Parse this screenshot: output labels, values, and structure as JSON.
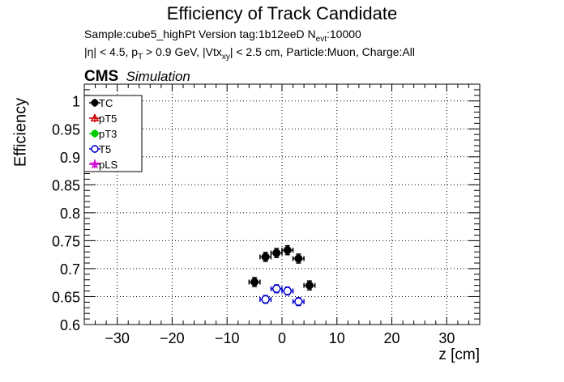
{
  "chart_data": {
    "type": "scatter",
    "title": "Efficiency of Track Candidate",
    "subtitle_line1": "Sample:cube5_highPt   Version tag:1b12eeD  N",
    "subtitle_line1_sub": "evt",
    "subtitle_line1_suffix": ":10000",
    "subtitle_line2_parts": [
      "|η| < 4.5, p",
      "T",
      " > 0.9 GeV, |Vtx",
      "xy",
      "| < 2.5 cm, Particle:Muon, Charge:All"
    ],
    "cms_label": "CMS",
    "cms_sublabel": "Simulation",
    "xlabel": "z [cm]",
    "ylabel": "Efficiency",
    "xlim": [
      -36,
      36
    ],
    "ylim": [
      0.6,
      1.03
    ],
    "xticks": [
      -30,
      -20,
      -10,
      0,
      10,
      20,
      30
    ],
    "xtick_labels": [
      "−30",
      "−20",
      "−10",
      "0",
      "10",
      "20",
      "30"
    ],
    "yticks": [
      0.6,
      0.65,
      0.7,
      0.75,
      0.8,
      0.85,
      0.9,
      0.95,
      1.0
    ],
    "ytick_labels": [
      "0.6",
      "0.65",
      "0.7",
      "0.75",
      "0.8",
      "0.85",
      "0.9",
      "0.95",
      "1"
    ],
    "grid": true,
    "legend_position": "top-left",
    "series": [
      {
        "name": "TC",
        "color": "#000000",
        "marker": "filled-circle",
        "x": [
          -5,
          -3,
          -1,
          1,
          3,
          5
        ],
        "y": [
          0.676,
          0.721,
          0.728,
          0.733,
          0.718,
          0.67
        ],
        "xerr": 1,
        "yerr": 0.008
      },
      {
        "name": "pT5",
        "color": "#cc0000",
        "marker": "open-triangle",
        "x": [],
        "y": []
      },
      {
        "name": "pT3",
        "color": "#00cc00",
        "marker": "filled-circle",
        "x": [],
        "y": []
      },
      {
        "name": "T5",
        "color": "#0000cc",
        "marker": "open-circle",
        "x": [
          -3,
          -1,
          1,
          3
        ],
        "y": [
          0.645,
          0.664,
          0.66,
          0.641
        ],
        "xerr": 1,
        "yerr": 0.007
      },
      {
        "name": "pLS",
        "color": "#cc00cc",
        "marker": "open-star",
        "x": [],
        "y": []
      }
    ]
  }
}
